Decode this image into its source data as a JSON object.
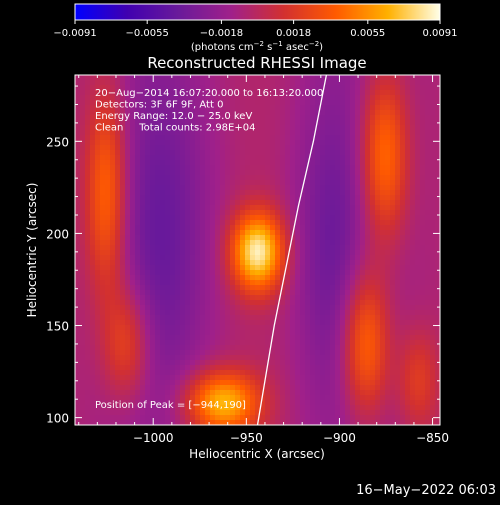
{
  "chart_data": {
    "type": "heatmap",
    "title": "Reconstructed RHESSI Image",
    "xlabel": "Heliocentric X (arcsec)",
    "ylabel": "Heliocentric Y (arcsec)",
    "xlim": [
      -1042,
      -846
    ],
    "ylim": [
      96,
      286
    ],
    "x_ticks": [
      -1000,
      -950,
      -900,
      -850
    ],
    "x_tick_labels": [
      "−1000",
      "−950",
      "−900",
      "−850"
    ],
    "y_ticks": [
      100,
      150,
      200,
      250
    ],
    "y_tick_labels": [
      "100",
      "150",
      "200",
      "250"
    ],
    "colorbar": {
      "range": [
        -0.0091,
        0.0091
      ],
      "ticks": [
        -0.0091,
        -0.0055,
        -0.0018,
        0.0018,
        0.0055,
        0.0091
      ],
      "tick_labels": [
        "−0.0091",
        "−0.0055",
        "−0.0018",
        "0.0018",
        "0.0055",
        "0.0091"
      ],
      "label_html": "(photons cm<tspan baseline-shift=\"super\" font-size=\"7\">−2</tspan> s<tspan baseline-shift=\"super\" font-size=\"7\">−1</tspan> asec<tspan baseline-shift=\"super\" font-size=\"7\">−2</tspan>)",
      "colors": [
        "#0000ff",
        "#4000b0",
        "#6a1a9a",
        "#a0208a",
        "#d23030",
        "#ff5a00",
        "#ffb000",
        "#ffffe8"
      ]
    },
    "info_lines": [
      "20−Aug−2014 16:07:20.000 to 16:13:20.000",
      "Detectors: 3F 6F 9F, Att 0",
      "Energy Range: 12.0 − 25.0 keV",
      "Clean     Total counts: 2.98E+04"
    ],
    "peak_label": "Position of Peak = [−944,190]",
    "sources": [
      {
        "x": -944,
        "y": 190,
        "amp": 0.0091,
        "sx": 10,
        "sy": 15
      },
      {
        "x": -963,
        "y": 108,
        "amp": 0.0075,
        "sx": 14,
        "sy": 12
      },
      {
        "x": -1025,
        "y": 222,
        "amp": 0.0055,
        "sx": 8,
        "sy": 40
      },
      {
        "x": -1014,
        "y": 140,
        "amp": 0.004,
        "sx": 9,
        "sy": 22
      },
      {
        "x": -876,
        "y": 242,
        "amp": 0.0058,
        "sx": 9,
        "sy": 32
      },
      {
        "x": -886,
        "y": 140,
        "amp": 0.0058,
        "sx": 9,
        "sy": 28
      },
      {
        "x": -858,
        "y": 120,
        "amp": 0.003,
        "sx": 8,
        "sy": 20
      }
    ],
    "limb": [
      [
        -944,
        96
      ],
      [
        -940,
        120
      ],
      [
        -935,
        150
      ],
      [
        -929,
        180
      ],
      [
        -922,
        215
      ],
      [
        -914,
        250
      ],
      [
        -907,
        286
      ]
    ],
    "timestamp": "16−May−2022 06:03"
  }
}
